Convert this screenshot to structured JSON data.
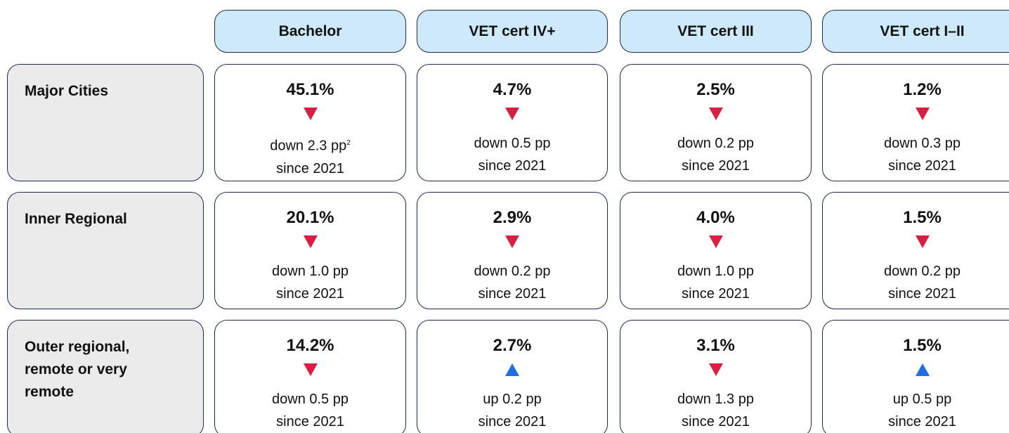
{
  "columns": [
    "Bachelor",
    "VET cert IV+",
    "VET cert III",
    "VET cert I–II"
  ],
  "rows": [
    {
      "label": "Major Cities",
      "cells": [
        {
          "value": "45.1%",
          "direction": "down",
          "change": "down 2.3 pp",
          "note": "2",
          "since": "since 2021"
        },
        {
          "value": "4.7%",
          "direction": "down",
          "change": "down 0.5 pp",
          "since": "since 2021"
        },
        {
          "value": "2.5%",
          "direction": "down",
          "change": "down 0.2 pp",
          "since": "since 2021"
        },
        {
          "value": "1.2%",
          "direction": "down",
          "change": "down 0.3 pp",
          "since": "since 2021"
        }
      ]
    },
    {
      "label": "Inner Regional",
      "cells": [
        {
          "value": "20.1%",
          "direction": "down",
          "change": "down 1.0 pp",
          "since": "since 2021"
        },
        {
          "value": "2.9%",
          "direction": "down",
          "change": "down 0.2 pp",
          "since": "since 2021"
        },
        {
          "value": "4.0%",
          "direction": "down",
          "change": "down 1.0 pp",
          "since": "since 2021"
        },
        {
          "value": "1.5%",
          "direction": "down",
          "change": "down 0.2 pp",
          "since": "since 2021"
        }
      ]
    },
    {
      "label": "Outer regional, remote or very remote",
      "cells": [
        {
          "value": "14.2%",
          "direction": "down",
          "change": "down 0.5 pp",
          "since": "since 2021"
        },
        {
          "value": "2.7%",
          "direction": "up",
          "change": "up 0.2 pp",
          "since": "since 2021"
        },
        {
          "value": "3.1%",
          "direction": "down",
          "change": "down 1.3 pp",
          "since": "since 2021"
        },
        {
          "value": "1.5%",
          "direction": "up",
          "change": "up 0.5 pp",
          "since": "since 2021"
        }
      ]
    }
  ]
}
